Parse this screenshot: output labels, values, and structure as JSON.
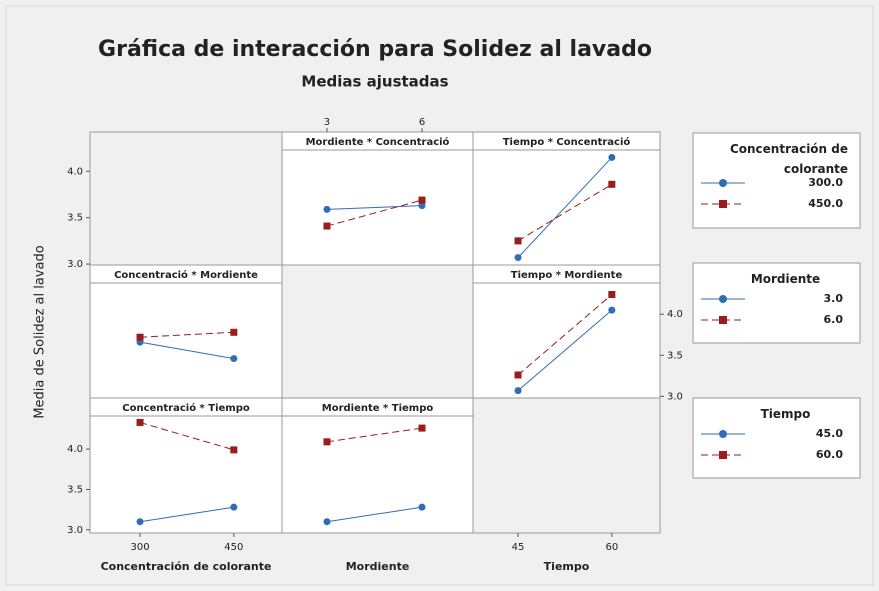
{
  "title": "Gráfica de interacción para Solidez al lavado",
  "subtitle": "Medias ajustadas",
  "y_label": "Media de Solidez al lavado",
  "factors": [
    {
      "name": "Concentración de colorante",
      "xlim": [
        220,
        527
      ],
      "xticks": [
        300,
        450
      ],
      "ylim": [
        2.99,
        4.23
      ],
      "yticks": [
        {
          "value": 3,
          "label": "3.0"
        },
        {
          "value": 3.5,
          "label": "3.5"
        },
        {
          "value": 4,
          "label": "4.0"
        }
      ],
      "levels": [
        {
          "name": "300.0",
          "color": "#2f6db5",
          "marker": "circle",
          "dash": "solid"
        },
        {
          "name": "450.0",
          "color": "#9b1c1c",
          "marker": "square",
          "dash": "dashed"
        }
      ]
    },
    {
      "name": "Mordiente",
      "xlim": [
        1.58,
        7.61
      ],
      "xticks": [
        3,
        6
      ],
      "ylim": [
        2.98,
        4.38
      ],
      "yticks": [
        {
          "value": 3,
          "label": "3.0"
        },
        {
          "value": 3.5,
          "label": "3.5"
        },
        {
          "value": 4,
          "label": "4.0"
        }
      ],
      "levels": [
        {
          "name": "3.0",
          "color": "#2f6db5",
          "marker": "circle",
          "dash": "solid"
        },
        {
          "name": "6.0",
          "color": "#9b1c1c",
          "marker": "square",
          "dash": "dashed"
        }
      ]
    },
    {
      "name": "Tiempo",
      "xlim": [
        37.8,
        67.7
      ],
      "xticks": [
        45,
        60
      ],
      "ylim": [
        2.96,
        4.41
      ],
      "yticks": [
        {
          "value": 3,
          "label": "3.0"
        },
        {
          "value": 3.5,
          "label": "3.5"
        },
        {
          "value": 4,
          "label": "4.0"
        }
      ],
      "levels": [
        {
          "name": "45.0",
          "color": "#2f6db5",
          "marker": "circle",
          "dash": "solid"
        },
        {
          "name": "60.0",
          "color": "#9b1c1c",
          "marker": "square",
          "dash": "dashed"
        }
      ]
    }
  ],
  "chart_data": [
    {
      "type": "line",
      "title": "Mordiente * Concentració",
      "x_factor": 1,
      "trace_factor": 0,
      "x": [
        3,
        6
      ],
      "series": [
        {
          "values": [
            3.59,
            3.63
          ]
        },
        {
          "values": [
            3.41,
            3.69
          ]
        }
      ]
    },
    {
      "type": "line",
      "title": "Tiempo * Concentració",
      "x_factor": 2,
      "trace_factor": 0,
      "x": [
        45,
        60
      ],
      "series": [
        {
          "values": [
            3.07,
            4.15
          ]
        },
        {
          "values": [
            3.25,
            3.86
          ]
        }
      ]
    },
    {
      "type": "line",
      "title": "Concentració * Mordiente",
      "x_factor": 0,
      "trace_factor": 1,
      "x": [
        300,
        450
      ],
      "series": [
        {
          "values": [
            3.66,
            3.46
          ]
        },
        {
          "values": [
            3.72,
            3.78
          ]
        }
      ]
    },
    {
      "type": "line",
      "title": "Tiempo * Mordiente",
      "x_factor": 2,
      "trace_factor": 1,
      "x": [
        45,
        60
      ],
      "series": [
        {
          "values": [
            3.07,
            4.05
          ]
        },
        {
          "values": [
            3.26,
            4.24
          ]
        }
      ]
    },
    {
      "type": "line",
      "title": "Concentració * Tiempo",
      "x_factor": 0,
      "trace_factor": 2,
      "x": [
        300,
        450
      ],
      "series": [
        {
          "values": [
            3.1,
            3.28
          ]
        },
        {
          "values": [
            4.33,
            3.99
          ]
        }
      ]
    },
    {
      "type": "line",
      "title": "Mordiente * Tiempo",
      "x_factor": 1,
      "trace_factor": 2,
      "x": [
        3,
        6
      ],
      "series": [
        {
          "values": [
            3.1,
            3.28
          ]
        },
        {
          "values": [
            4.09,
            4.26
          ]
        }
      ]
    }
  ]
}
